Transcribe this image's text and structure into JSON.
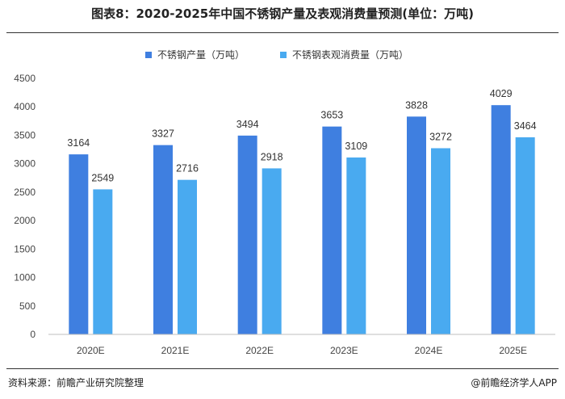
{
  "title": "图表8：2020-2025年中国不锈钢产量及表观消费量预测(单位：万吨)",
  "footer": {
    "source": "资料来源：前瞻产业研究院整理",
    "brand": "@前瞻经济学人APP"
  },
  "chart_data": {
    "type": "bar",
    "categories": [
      "2020E",
      "2021E",
      "2022E",
      "2023E",
      "2024E",
      "2025E"
    ],
    "series": [
      {
        "name": "不锈钢产量（万吨）",
        "color": "#3f7fe0",
        "values": [
          3164,
          3327,
          3494,
          3653,
          3828,
          4029
        ]
      },
      {
        "name": "不锈钢表观消费量（万吨）",
        "color": "#49aaf0",
        "values": [
          2549,
          2716,
          2918,
          3109,
          3272,
          3464
        ]
      }
    ],
    "ylim": [
      0,
      4500
    ],
    "yticks": [
      0,
      500,
      1000,
      1500,
      2000,
      2500,
      3000,
      3500,
      4000,
      4500
    ],
    "grid": false,
    "legend": "top-center"
  }
}
